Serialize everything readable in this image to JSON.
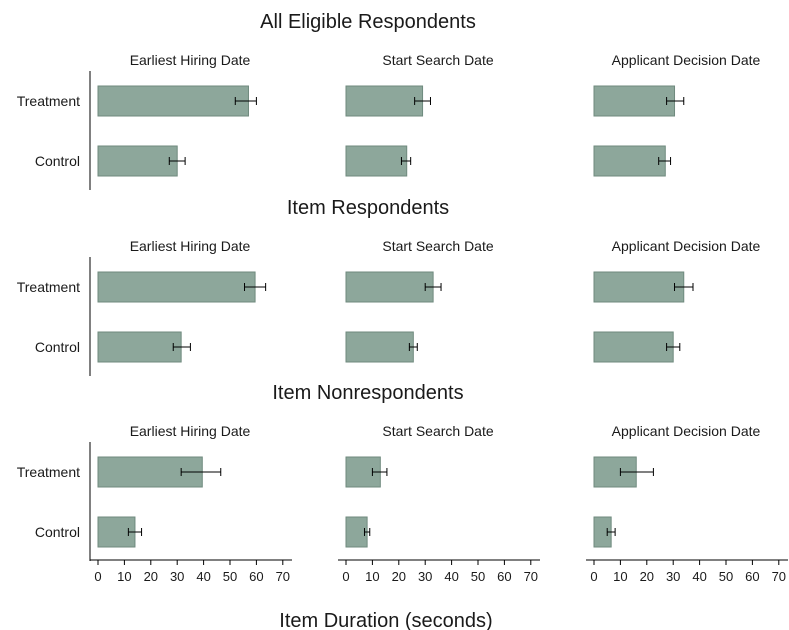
{
  "chart_data": {
    "type": "bar",
    "orientation": "horizontal",
    "xlabel": "Item Duration (seconds)",
    "xlim": [
      0,
      70
    ],
    "xticks": [
      0,
      10,
      20,
      30,
      40,
      50,
      60,
      70
    ],
    "categories": [
      "Treatment",
      "Control"
    ],
    "grid": false,
    "bar_color": "#8da79b",
    "bar_edge_color": "#6f8a7e",
    "error_bar_color": "#000000",
    "panels": [
      {
        "name": "All Eligible Respondents",
        "columns": [
          {
            "title": "Earliest Hiring Date",
            "values": [
              57,
              30
            ],
            "ci": [
              [
                52,
                60
              ],
              [
                27,
                33
              ]
            ]
          },
          {
            "title": "Start Search Date",
            "values": [
              29,
              23
            ],
            "ci": [
              [
                26,
                32
              ],
              [
                21,
                24.5
              ]
            ]
          },
          {
            "title": "Applicant Decision Date",
            "values": [
              30.5,
              27
            ],
            "ci": [
              [
                27.5,
                34
              ],
              [
                24.5,
                29
              ]
            ]
          }
        ]
      },
      {
        "name": "Item Respondents",
        "columns": [
          {
            "title": "Earliest Hiring Date",
            "values": [
              59.5,
              31.5
            ],
            "ci": [
              [
                55.5,
                63.5
              ],
              [
                28.5,
                35
              ]
            ]
          },
          {
            "title": "Start Search Date",
            "values": [
              33,
              25.5
            ],
            "ci": [
              [
                30,
                36
              ],
              [
                24,
                27
              ]
            ]
          },
          {
            "title": "Applicant Decision Date",
            "values": [
              34,
              30
            ],
            "ci": [
              [
                30.5,
                37.5
              ],
              [
                27.5,
                32.5
              ]
            ]
          }
        ]
      },
      {
        "name": "Item Nonrespondents",
        "columns": [
          {
            "title": "Earliest Hiring Date",
            "values": [
              39.5,
              14
            ],
            "ci": [
              [
                31.5,
                46.5
              ],
              [
                11.5,
                16.5
              ]
            ]
          },
          {
            "title": "Start Search Date",
            "values": [
              13,
              8
            ],
            "ci": [
              [
                10,
                15.5
              ],
              [
                7,
                9
              ]
            ]
          },
          {
            "title": "Applicant Decision Date",
            "values": [
              16,
              6.5
            ],
            "ci": [
              [
                10,
                22.5
              ],
              [
                5,
                8
              ]
            ]
          }
        ]
      }
    ]
  }
}
